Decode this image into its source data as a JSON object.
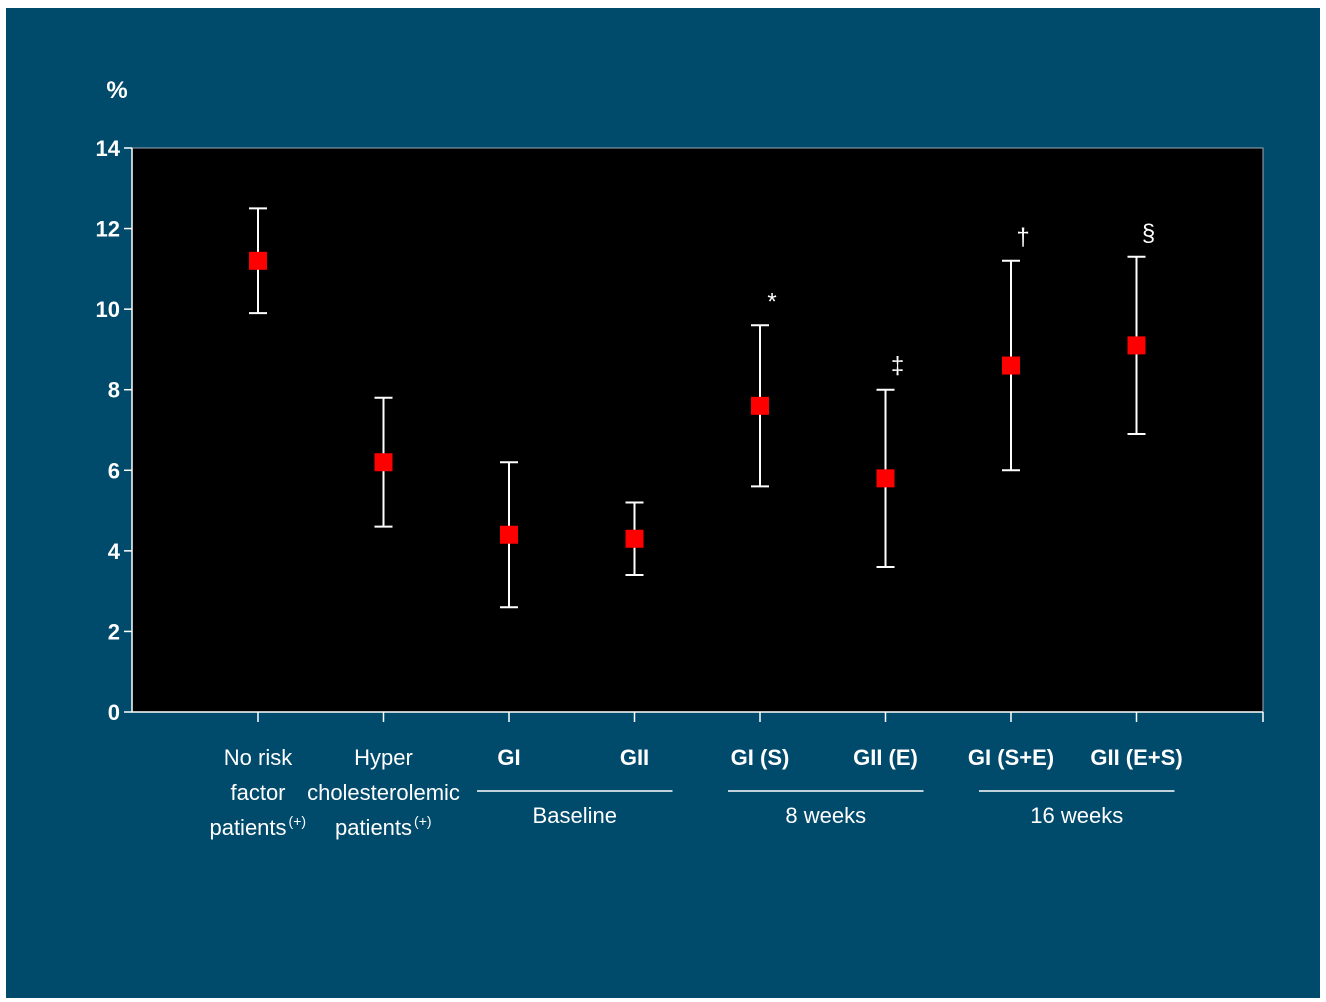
{
  "chart_data": {
    "type": "scatter",
    "title": "",
    "ylabel": "%",
    "xlabel": "",
    "ylim": [
      0,
      14
    ],
    "yticks": [
      0,
      2,
      4,
      6,
      8,
      10,
      12,
      14
    ],
    "grid": false,
    "colors": {
      "background": "#004a6c",
      "plot_area": "#000000",
      "marker": "#ff0000",
      "error_bar": "#ffffff",
      "text": "#ffffff"
    },
    "categories": [
      {
        "lines": [
          "No risk",
          "factor",
          "patients"
        ],
        "superscript": "(+)",
        "bold": false
      },
      {
        "lines": [
          "Hyper",
          "cholesterolemic",
          "patients"
        ],
        "superscript": "(+)",
        "bold": false
      },
      {
        "lines": [
          "GI"
        ],
        "superscript": "",
        "bold": true
      },
      {
        "lines": [
          "GII"
        ],
        "superscript": "",
        "bold": true
      },
      {
        "lines": [
          "GI (S)"
        ],
        "superscript": "",
        "bold": true
      },
      {
        "lines": [
          "GII (E)"
        ],
        "superscript": "",
        "bold": true
      },
      {
        "lines": [
          "GI (S+E)"
        ],
        "superscript": "",
        "bold": true
      },
      {
        "lines": [
          "GII (E+S)"
        ],
        "superscript": "",
        "bold": true
      }
    ],
    "values": [
      11.2,
      6.2,
      4.4,
      4.3,
      7.6,
      5.8,
      8.6,
      9.1
    ],
    "error_low": [
      9.9,
      4.6,
      2.6,
      3.4,
      5.6,
      3.6,
      6.0,
      6.9
    ],
    "error_high": [
      12.5,
      7.8,
      6.2,
      5.2,
      9.6,
      8.0,
      11.2,
      11.3
    ],
    "annotations": [
      "",
      "",
      "",
      "",
      "*",
      "‡",
      "†",
      "§"
    ],
    "groups": [
      {
        "label": "Baseline",
        "from": 2,
        "to": 3
      },
      {
        "label": "8 weeks",
        "from": 4,
        "to": 5
      },
      {
        "label": "16 weeks",
        "from": 6,
        "to": 7
      }
    ]
  }
}
